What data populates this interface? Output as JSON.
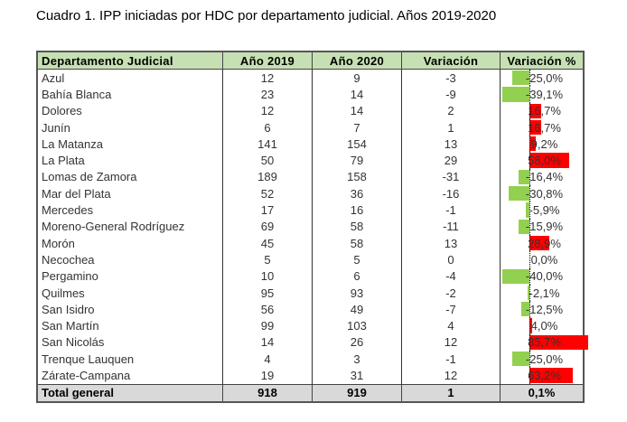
{
  "title": "Cuadro 1. IPP iniciadas por HDC por departamento judicial. Años 2019-2020",
  "headers": [
    "Departamento Judicial",
    "Año 2019",
    "Año 2020",
    "Variación",
    "Variación %"
  ],
  "rows": [
    [
      "Azul",
      "12",
      "9",
      "-3",
      "-25,0%",
      -25.0
    ],
    [
      "Bahía Blanca",
      "23",
      "14",
      "-9",
      "-39,1%",
      -39.1
    ],
    [
      "Dolores",
      "12",
      "14",
      "2",
      "16,7%",
      16.7
    ],
    [
      "Junín",
      "6",
      "7",
      "1",
      "16,7%",
      16.7
    ],
    [
      "La Matanza",
      "141",
      "154",
      "13",
      "9,2%",
      9.2
    ],
    [
      "La Plata",
      "50",
      "79",
      "29",
      "58,0%",
      58.0
    ],
    [
      "Lomas de Zamora",
      "189",
      "158",
      "-31",
      "-16,4%",
      -16.4
    ],
    [
      "Mar del Plata",
      "52",
      "36",
      "-16",
      "-30,8%",
      -30.8
    ],
    [
      "Mercedes",
      "17",
      "16",
      "-1",
      "-5,9%",
      -5.9
    ],
    [
      "Moreno-General Rodríguez",
      "69",
      "58",
      "-11",
      "-15,9%",
      -15.9
    ],
    [
      "Morón",
      "45",
      "58",
      "13",
      "28,9%",
      28.9
    ],
    [
      "Necochea",
      "5",
      "5",
      "0",
      "0,0%",
      0.0
    ],
    [
      "Pergamino",
      "10",
      "6",
      "-4",
      "-40,0%",
      -40.0
    ],
    [
      "Quilmes",
      "95",
      "93",
      "-2",
      "-2,1%",
      -2.1
    ],
    [
      "San Isidro",
      "56",
      "49",
      "-7",
      "-12,5%",
      -12.5
    ],
    [
      "San Martín",
      "99",
      "103",
      "4",
      "4,0%",
      4.0
    ],
    [
      "San Nicolás",
      "14",
      "26",
      "12",
      "85,7%",
      85.7
    ],
    [
      "Trenque Lauquen",
      "4",
      "3",
      "-1",
      "-25,0%",
      -25.0
    ],
    [
      "Zárate-Campana",
      "19",
      "31",
      "12",
      "63,2%",
      63.2
    ]
  ],
  "total": [
    "Total general",
    "918",
    "919",
    "1",
    "0,1%"
  ],
  "colors": {
    "positive": "#ff0000",
    "negative": "#92d050",
    "header": "#c6e0b4",
    "total": "#d9d9d9"
  }
}
